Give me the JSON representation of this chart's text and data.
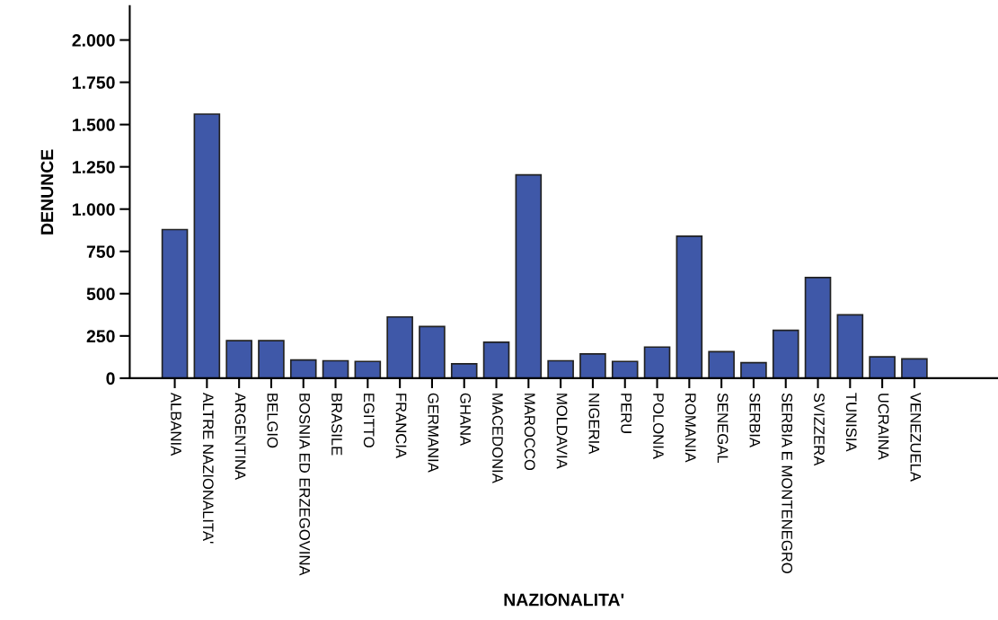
{
  "chart_data": {
    "type": "bar",
    "xlabel": "NAZIONALITA'",
    "ylabel": "DENUNCE",
    "categories": [
      "ALBANIA",
      "ALTRE NAZIONALITA'",
      "ARGENTINA",
      "BELGIO",
      "BOSNIA ED ERZEGOVINA",
      "BRASILE",
      "EGITTO",
      "FRANCIA",
      "GERMANIA",
      "GHANA",
      "MACEDONIA",
      "MAROCCO",
      "MOLDAVIA",
      "NIGERIA",
      "PERU",
      "POLONIA",
      "ROMANIA",
      "SENEGAL",
      "SERBIA",
      "SERBIA E MONTENEGRO",
      "SVIZZERA",
      "TUNISIA",
      "UCRAINA",
      "VENEZUELA"
    ],
    "values": [
      879,
      1562,
      222,
      222,
      108,
      103,
      99,
      362,
      306,
      85,
      213,
      1202,
      103,
      144,
      99,
      184,
      840,
      157,
      92,
      283,
      595,
      375,
      126,
      114
    ],
    "color": "#3f58a8",
    "ylim": [
      0,
      2200
    ],
    "yticks": [
      0,
      {
        "value": 250,
        "label": "250"
      },
      {
        "value": 500,
        "label": "500"
      },
      {
        "value": 750,
        "label": "750"
      },
      {
        "value": 1000,
        "label": "1.000"
      },
      {
        "value": 1250,
        "label": "1.250"
      },
      {
        "value": 1500,
        "label": "1.500"
      },
      {
        "value": 1750,
        "label": "1.750"
      },
      {
        "value": 2000,
        "label": "2.000"
      }
    ],
    "grid": false
  }
}
